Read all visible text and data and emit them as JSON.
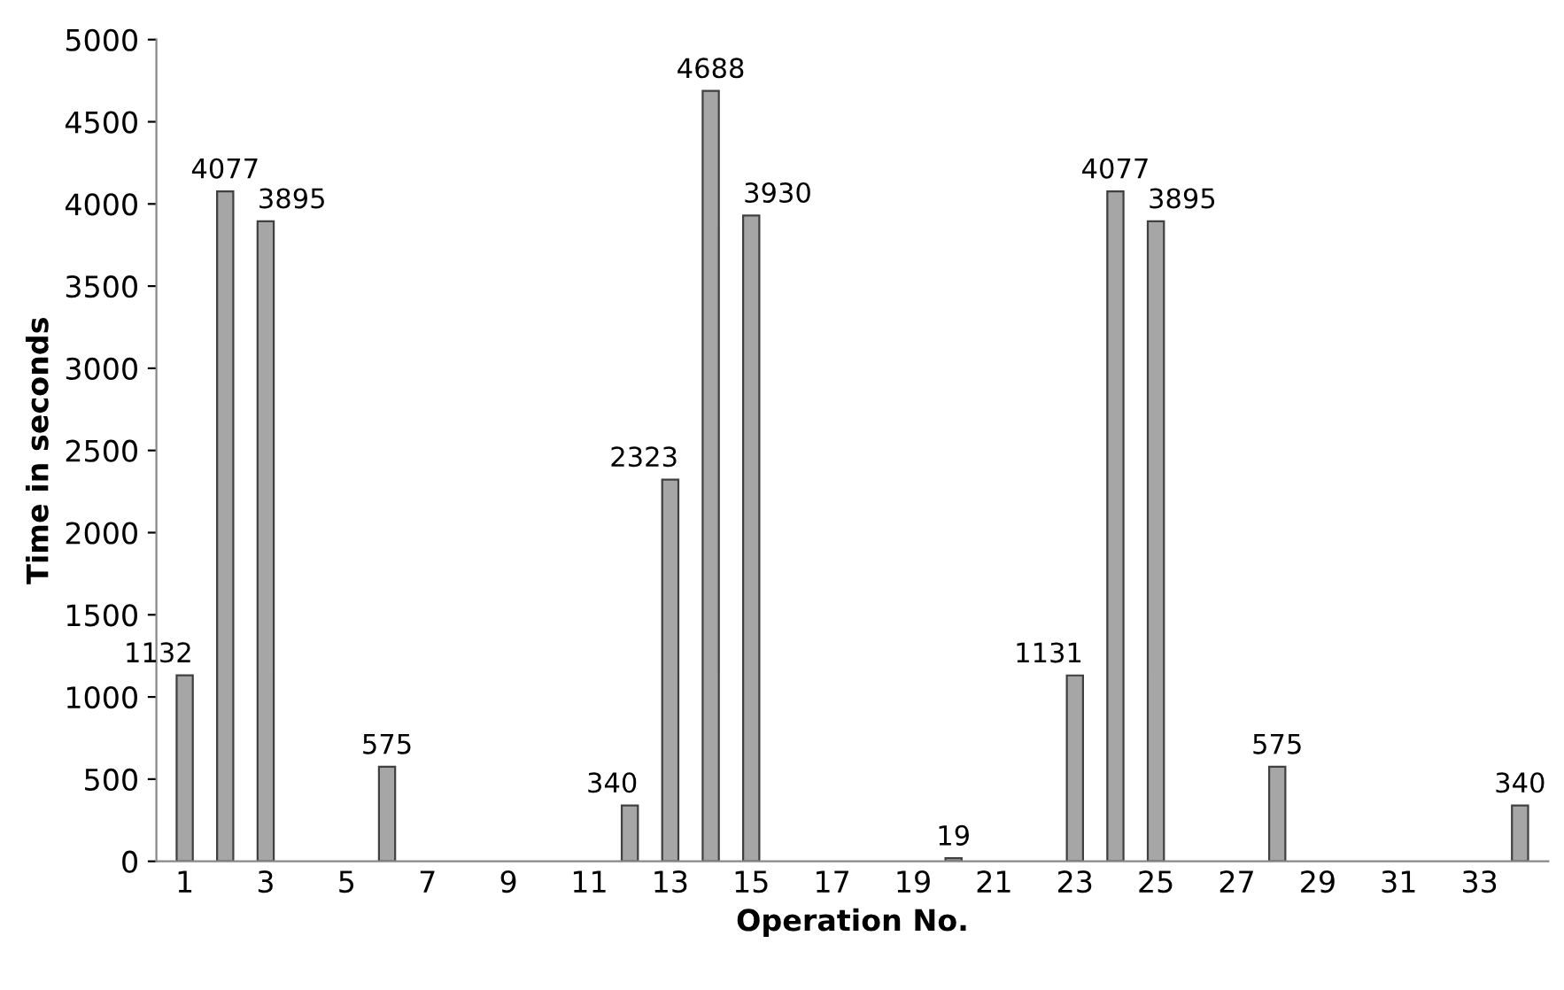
{
  "chart_data": {
    "type": "bar",
    "xlabel": "Operation No.",
    "ylabel": "Time in seconds",
    "categories": [
      "1",
      null,
      "3",
      null,
      "5",
      null,
      "7",
      null,
      "9",
      null,
      "11",
      null,
      "13",
      null,
      "15",
      null,
      "17",
      null,
      "19",
      null,
      "21",
      null,
      "23",
      null,
      "25",
      null,
      "27",
      null,
      "29",
      null,
      "31",
      null,
      "33",
      null
    ],
    "values": [
      1132,
      4077,
      3895,
      null,
      null,
      575,
      null,
      null,
      null,
      null,
      null,
      340,
      2323,
      4688,
      3930,
      null,
      null,
      null,
      null,
      19,
      null,
      null,
      1131,
      4077,
      3895,
      null,
      null,
      575,
      null,
      null,
      null,
      null,
      null,
      340
    ],
    "color": "#a6a6a6",
    "ylim": [
      0,
      5000
    ],
    "yticks": [
      0,
      500,
      1000,
      1500,
      2000,
      2500,
      3000,
      3500,
      4000,
      4500,
      5000
    ],
    "grid": false,
    "legend": false,
    "data_labels": true
  }
}
